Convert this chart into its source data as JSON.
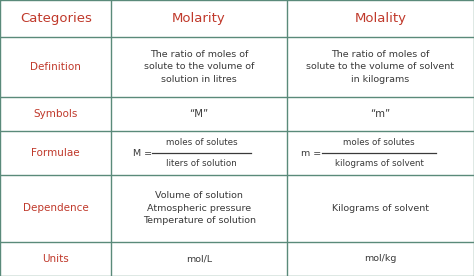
{
  "bg_color": "#ffffff",
  "header_text_color": "#c0392b",
  "row_label_color": "#c0392b",
  "cell_text_color": "#3a3a3a",
  "line_color": "#5a8a7a",
  "col_headers": [
    "Categories",
    "Molarity",
    "Molality"
  ],
  "molarity_definition": "The ratio of moles of\nsolute to the volume of\nsolution in litres",
  "molality_definition": "The ratio of moles of\nsolute to the volume of solvent\nin kilograms",
  "molarity_symbol": "“M”",
  "molality_symbol": "“m”",
  "molarity_formula_num": "moles of solutes",
  "molarity_formula_den": "liters of solution",
  "molality_formula_num": "moles of solutes",
  "molality_formula_den": "kilograms of solvent",
  "molarity_dependence": "Volume of solution\nAtmospheric pressure\nTemperature of solution",
  "molality_dependence": "Kilograms of solvent",
  "molarity_units": "mol/L",
  "molality_units": "mol/kg",
  "row_labels": [
    "Definition",
    "Symbols",
    "Formulae",
    "Dependence",
    "Units"
  ],
  "header_fontsize": 9.5,
  "label_fontsize": 7.5,
  "cell_fontsize": 6.8,
  "formula_fontsize": 6.8
}
